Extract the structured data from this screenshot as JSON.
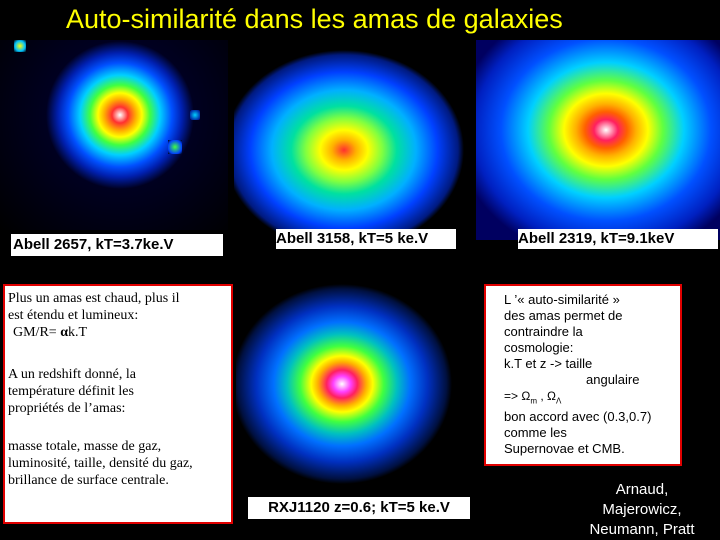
{
  "title": "Auto-similarité dans les amas de galaxies",
  "images": [
    {
      "caption": "Abell 2657, kT=3.7ke.V"
    },
    {
      "caption": "Abell 3158, kT=5 ke.V"
    },
    {
      "caption": "Abell 2319,  kT=9.1keV"
    },
    {
      "caption": "RXJ1120 z=0.6; kT=5 ke.V"
    }
  ],
  "left_box": {
    "para1_lines": [
      "Plus un amas est chaud, plus il",
      "est étendu et lumineux:"
    ],
    "formula_prefix": "GM/R=",
    "formula_symbol": "α",
    "formula_suffix": "k.T",
    "para2_lines": [
      "A un redshift donné, la",
      "température définit les",
      "propriétés de l’amas:"
    ],
    "para3_lines": [
      "masse totale, masse de gaz,",
      "luminosité, taille, densité du gaz,",
      "brillance de surface centrale."
    ]
  },
  "right_box": {
    "lines": [
      "L ’« auto-similarité »",
      "des amas permet de",
      "contraindre la",
      "cosmologie:",
      "k.T et z -> taille",
      "angulaire"
    ],
    "omega_prefix": "=>",
    "omega_m": "Ω",
    "omega_m_sub": "m",
    "omega_l": "Ω",
    "omega_l_sub": "Λ",
    "lines2": [
      "bon accord avec (0.3,0.7)",
      "comme les",
      "Supernovae et CMB."
    ]
  },
  "authors": [
    "Arnaud,",
    "Majerowicz,",
    "Neumann, Pratt"
  ],
  "colors": {
    "title": "#ffff00",
    "box_border": "#e00000",
    "background": "#000000"
  }
}
